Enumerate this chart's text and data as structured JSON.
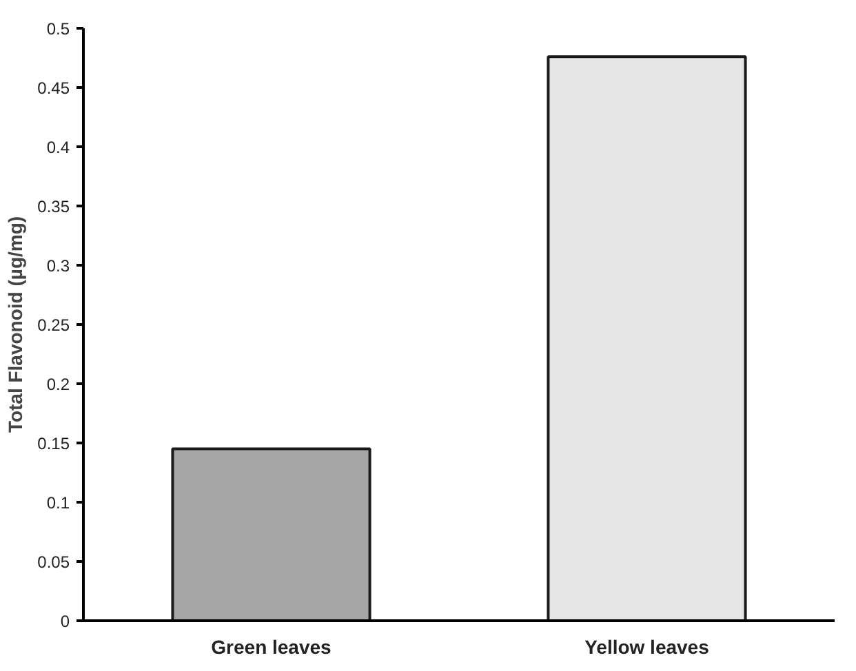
{
  "chart_data": {
    "type": "bar",
    "ylabel": "Total Flavonoid (µg/mg)",
    "categories": [
      "Green leaves",
      "Yellow leaves"
    ],
    "values": [
      0.145,
      0.476
    ],
    "colors": [
      "#a6a6a6",
      "#e6e6e6"
    ],
    "ylim": [
      0,
      0.5
    ],
    "yticks": [
      0,
      0.05,
      0.1,
      0.15,
      0.2,
      0.25,
      0.3,
      0.35,
      0.4,
      0.45,
      0.5
    ],
    "grid": false
  }
}
